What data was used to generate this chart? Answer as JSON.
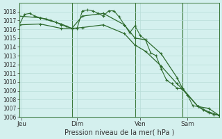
{
  "bg_color": "#d4f0ee",
  "grid_color": "#b8ddd8",
  "line_color": "#2d6a2d",
  "title": "Pression niveau de la mer( hPa )",
  "ylim": [
    1006,
    1019
  ],
  "yticks": [
    1006,
    1007,
    1008,
    1009,
    1010,
    1011,
    1012,
    1013,
    1014,
    1015,
    1016,
    1017,
    1018
  ],
  "xlim": [
    0,
    38
  ],
  "day_labels": [
    "Jeu",
    "Dim",
    "Ven",
    "Sam"
  ],
  "day_positions": [
    0.5,
    11,
    23,
    32
  ],
  "day_vlines": [
    0,
    10,
    22,
    31
  ],
  "series1_x": [
    0,
    1,
    2,
    3,
    4,
    5,
    6,
    7,
    8,
    9,
    10,
    11,
    12,
    13,
    14,
    15,
    16,
    17,
    18,
    19,
    20,
    21,
    22,
    23,
    24,
    25,
    26,
    27,
    28,
    29,
    30,
    31,
    32,
    33,
    34,
    35,
    36,
    37,
    38
  ],
  "series1_y": [
    1016.5,
    1017.7,
    1017.8,
    1017.5,
    1017.3,
    1017.2,
    1017.0,
    1016.8,
    1016.5,
    1016.3,
    1016.1,
    1016.1,
    1018.1,
    1018.2,
    1018.1,
    1017.8,
    1017.5,
    1018.1,
    1018.1,
    1017.4,
    1016.5,
    1015.6,
    1016.4,
    1015.3,
    1014.8,
    1013.3,
    1013.0,
    1011.5,
    1010.2,
    1009.8,
    1009.3,
    1009.2,
    1008.5,
    1007.3,
    1007.2,
    1006.8,
    1006.5,
    1006.3,
    1006.2
  ],
  "series2_x": [
    0,
    4,
    8,
    10,
    12,
    16,
    20,
    22,
    24,
    27,
    30,
    31,
    34,
    36,
    38
  ],
  "series2_y": [
    1017.5,
    1017.3,
    1016.6,
    1016.1,
    1017.5,
    1017.8,
    1016.5,
    1015.0,
    1014.8,
    1013.2,
    1010.5,
    1009.3,
    1007.2,
    1007.0,
    1006.2
  ],
  "series3_x": [
    0,
    4,
    8,
    10,
    12,
    16,
    20,
    22,
    24,
    27,
    30,
    31,
    34,
    36,
    38
  ],
  "series3_y": [
    1016.5,
    1016.6,
    1016.1,
    1016.1,
    1016.2,
    1016.5,
    1015.5,
    1014.2,
    1013.5,
    1011.8,
    1009.8,
    1009.2,
    1007.2,
    1006.6,
    1006.2
  ]
}
